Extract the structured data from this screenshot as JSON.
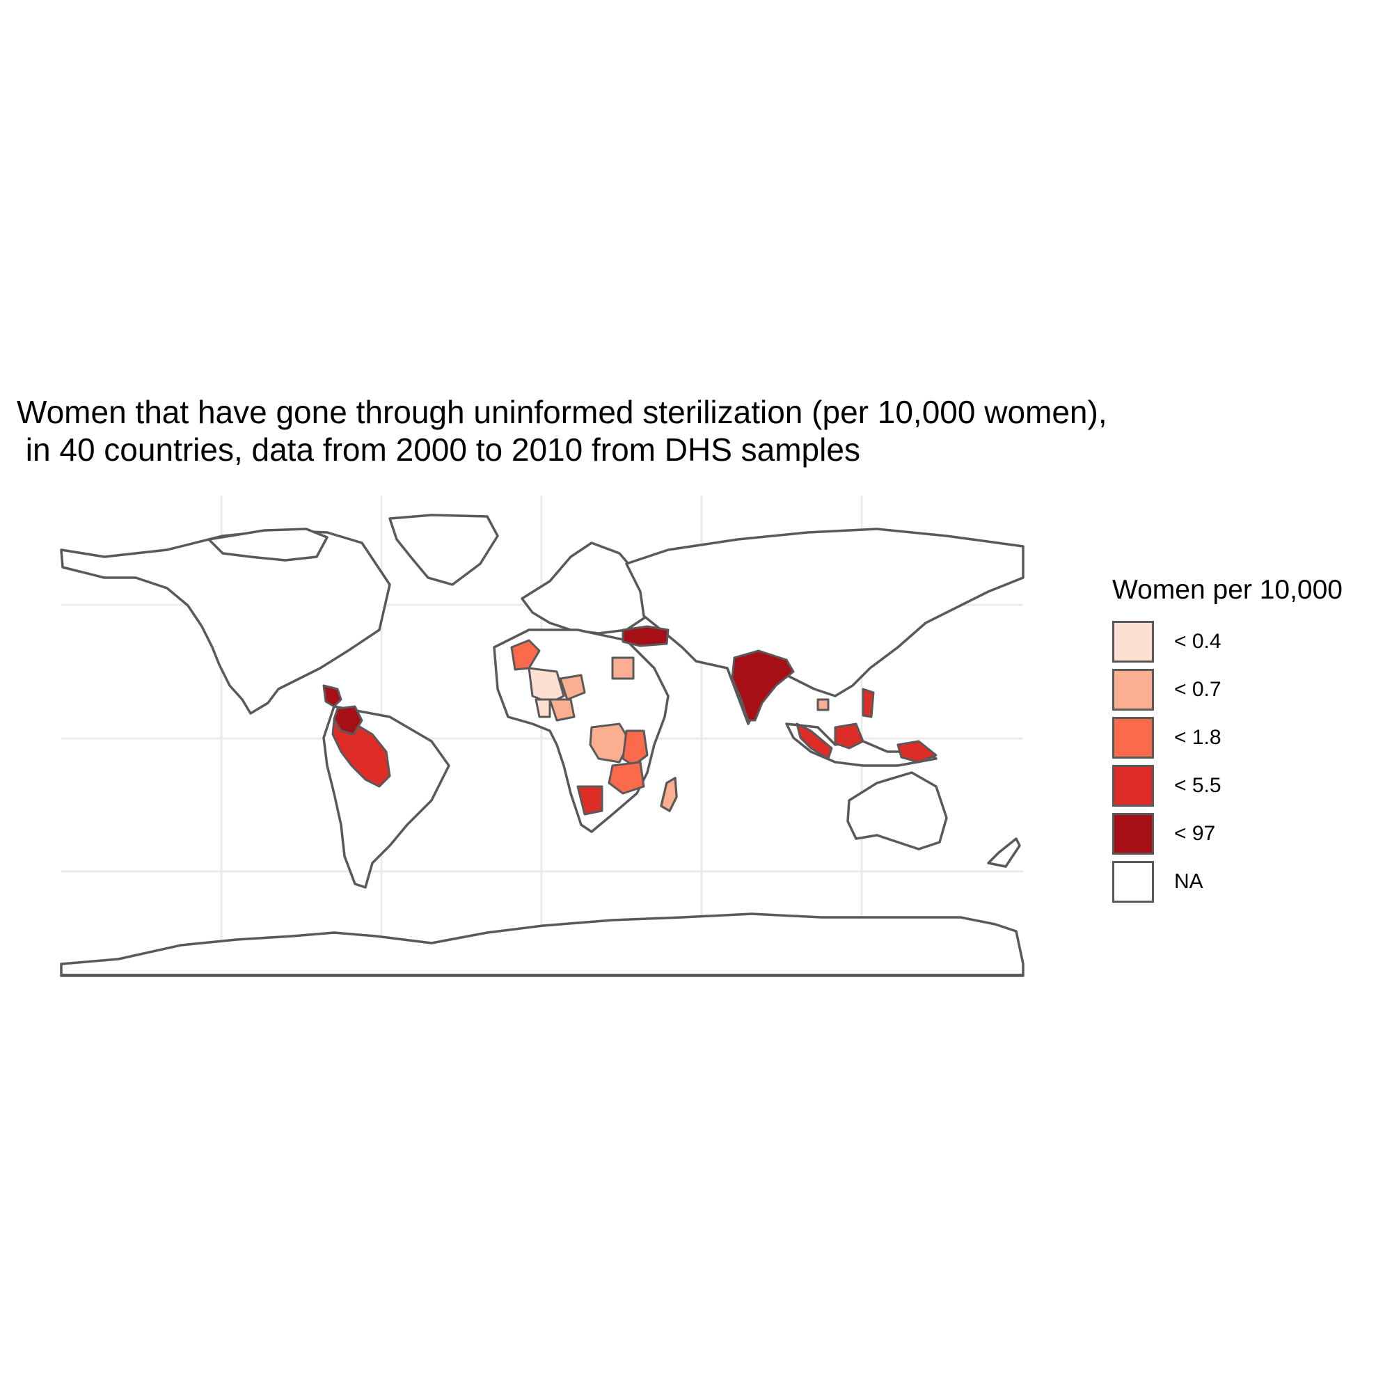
{
  "title": "Women that have gone through uninformed sterilization (per 10,000 women),\n in 40 countries, data from 2000 to 2010 from DHS samples",
  "legend": {
    "title": "Women per 10,000",
    "items": [
      {
        "label": "< 0.4",
        "color": "#fee0d2"
      },
      {
        "label": "< 0.7",
        "color": "#fcae91"
      },
      {
        "label": "< 1.8",
        "color": "#fb6a4a"
      },
      {
        "label": "< 5.5",
        "color": "#de2d26"
      },
      {
        "label": "< 97",
        "color": "#a50f15"
      },
      {
        "label": "NA",
        "color": "#ffffff"
      }
    ]
  },
  "chart_data": {
    "type": "choropleth",
    "map": "world",
    "projection": "equirectangular",
    "grid": true,
    "legend_position": "right",
    "border_color": "#595959",
    "bins": [
      "< 0.4",
      "< 0.7",
      "< 1.8",
      "< 5.5",
      "< 97",
      "NA"
    ]
  }
}
